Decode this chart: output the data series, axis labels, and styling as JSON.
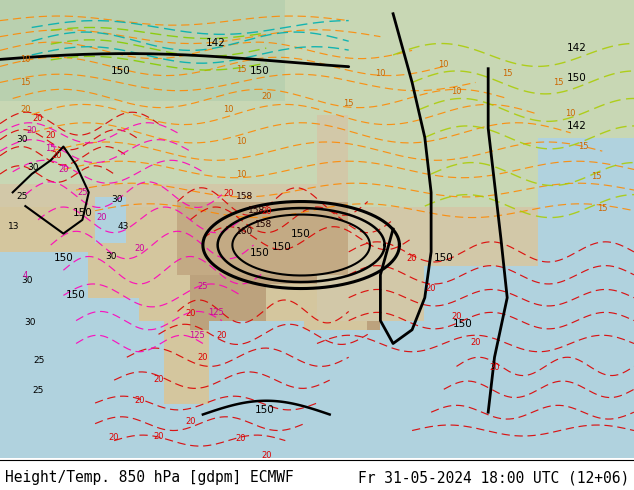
{
  "title_left": "Height/Temp. 850 hPa [gdpm] ECMWF",
  "title_right": "Fr 31-05-2024 18:00 UTC (12+06)",
  "bg_color": "#ffffff",
  "bottom_text_color": "#000000",
  "bottom_separator_color": "#000000",
  "label_fontsize": 10.5,
  "fig_width": 6.34,
  "fig_height": 4.9,
  "dpi": 100
}
